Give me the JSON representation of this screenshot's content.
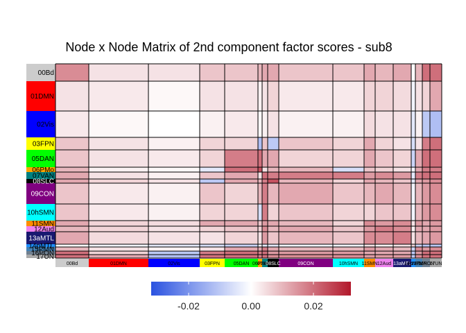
{
  "chart_data": {
    "type": "heatmap",
    "title": "Node x Node Matrix of 2nd component factor scores - sub8",
    "xlabel": "",
    "ylabel": "",
    "networks": [
      {
        "label": "00Bd",
        "bg": "#cccccc",
        "fg": "#000000"
      },
      {
        "label": "01DMN",
        "bg": "#ff0000",
        "fg": "#000000"
      },
      {
        "label": "02Vis",
        "bg": "#0000ff",
        "fg": "#000000"
      },
      {
        "label": "03FPN",
        "bg": "#ffff00",
        "fg": "#000000"
      },
      {
        "label": "05DAN",
        "bg": "#00ff00",
        "fg": "#000000"
      },
      {
        "label": "06PMo",
        "bg": "#ffa500",
        "fg": "#000000"
      },
      {
        "label": "07VAN",
        "bg": "#008080",
        "fg": "#000000"
      },
      {
        "label": "08SLC",
        "bg": "#000000",
        "fg": "#ffffff"
      },
      {
        "label": "09CON",
        "bg": "#800080",
        "fg": "#ffffff"
      },
      {
        "label": "10hSMN",
        "bg": "#00ffff",
        "fg": "#000000"
      },
      {
        "label": "11SMN",
        "bg": "#ff8c00",
        "fg": "#000000"
      },
      {
        "label": "12Aud",
        "bg": "#ee82ee",
        "fg": "#000000"
      },
      {
        "label": "13aMTL",
        "bg": "#191970",
        "fg": "#ffffff"
      },
      {
        "label": "14pMTL",
        "bg": "#1e90ff",
        "fg": "#000000"
      },
      {
        "label": "15PMN",
        "bg": "#4682b4",
        "fg": "#000000"
      },
      {
        "label": "16PON",
        "bg": "#708090",
        "fg": "#000000"
      },
      {
        "label": "17UN",
        "bg": "#a9a9a9",
        "fg": "#000000"
      }
    ],
    "row_labels_shown": [
      "00Bd",
      "01DMN",
      "02Vis",
      "03FPN",
      "05DAN",
      "06PMo",
      "07VAN",
      "08SLC",
      "09CON",
      "10hSMN",
      "11SMN",
      "12Aud",
      "13aMTL",
      "14pMTL",
      "15PMN",
      "16PON",
      "17UN"
    ],
    "col_labels_shown": [
      "00Bd",
      "01DMN",
      "02Vis",
      "03FPN",
      "05DAN",
      "06PMo",
      "07VAN",
      "08SLC",
      "09CON",
      "10hSMN",
      "11SMN",
      "12Aud",
      "13aMTL",
      "14pMTL",
      "15PMN",
      "16PON",
      "17UN"
    ],
    "values": [
      [
        0.016,
        0.004,
        0.004,
        0.008,
        0.008,
        0.01,
        0.012,
        0.012,
        0.008,
        0.008,
        0.012,
        0.01,
        0.012,
        0.0,
        0.01,
        0.02,
        0.02
      ],
      [
        0.004,
        0.003,
        0.001,
        0.004,
        0.004,
        0.002,
        0.004,
        0.006,
        0.003,
        0.003,
        0.006,
        0.006,
        0.005,
        -0.002,
        0.004,
        0.006,
        0.012
      ],
      [
        0.003,
        0.001,
        0.0,
        0.002,
        0.003,
        0.001,
        0.002,
        0.004,
        0.002,
        0.002,
        0.005,
        0.004,
        0.004,
        -0.004,
        0.002,
        -0.01,
        -0.012
      ],
      [
        0.008,
        0.004,
        0.002,
        0.006,
        0.006,
        -0.012,
        0.008,
        -0.01,
        0.008,
        0.006,
        0.012,
        0.006,
        0.004,
        -0.006,
        0.004,
        0.018,
        0.02
      ],
      [
        0.008,
        0.004,
        0.003,
        0.006,
        0.018,
        0.02,
        0.012,
        0.012,
        0.006,
        0.006,
        0.012,
        0.008,
        0.006,
        -0.008,
        0.012,
        0.02,
        0.02
      ],
      [
        0.01,
        0.002,
        0.001,
        -0.004,
        0.02,
        0.024,
        0.004,
        0.01,
        0.01,
        -0.006,
        0.008,
        0.006,
        0.004,
        -0.002,
        0.012,
        0.018,
        0.018
      ],
      [
        0.012,
        0.004,
        0.002,
        0.008,
        0.012,
        0.004,
        0.02,
        0.018,
        0.018,
        0.018,
        0.014,
        0.016,
        0.014,
        -0.004,
        0.018,
        0.02,
        0.02
      ],
      [
        0.012,
        0.006,
        0.004,
        -0.01,
        0.012,
        0.01,
        0.018,
        0.024,
        0.01,
        0.006,
        0.012,
        0.01,
        0.008,
        -0.004,
        0.012,
        0.014,
        0.016
      ],
      [
        0.008,
        0.003,
        0.002,
        0.008,
        0.006,
        0.01,
        0.018,
        0.01,
        0.012,
        0.008,
        0.01,
        0.012,
        0.01,
        -0.002,
        0.01,
        0.014,
        0.016
      ],
      [
        0.008,
        0.003,
        0.002,
        0.006,
        0.006,
        -0.006,
        0.018,
        0.006,
        0.008,
        0.006,
        0.006,
        0.008,
        0.008,
        -0.002,
        0.01,
        0.014,
        0.016
      ],
      [
        0.012,
        0.006,
        0.005,
        0.012,
        0.012,
        0.008,
        0.014,
        0.012,
        0.01,
        0.006,
        0.016,
        0.014,
        0.016,
        0.004,
        0.014,
        0.012,
        0.014
      ],
      [
        0.01,
        0.006,
        0.004,
        0.006,
        0.008,
        0.006,
        0.016,
        0.01,
        0.012,
        0.008,
        0.014,
        0.018,
        0.016,
        0.002,
        0.012,
        0.012,
        0.014
      ],
      [
        0.012,
        0.005,
        0.004,
        0.004,
        0.006,
        0.004,
        0.014,
        0.008,
        0.01,
        0.008,
        0.016,
        0.016,
        0.018,
        0.004,
        0.01,
        0.012,
        0.014
      ],
      [
        0.0,
        -0.002,
        -0.004,
        -0.006,
        -0.008,
        -0.002,
        -0.004,
        -0.004,
        -0.002,
        -0.002,
        0.004,
        0.002,
        0.004,
        0.006,
        -0.008,
        -0.01,
        -0.01
      ],
      [
        0.01,
        0.004,
        0.002,
        0.004,
        0.012,
        0.012,
        0.018,
        0.012,
        0.01,
        0.01,
        0.014,
        0.012,
        0.01,
        -0.008,
        0.016,
        0.014,
        0.016
      ],
      [
        0.02,
        0.006,
        -0.01,
        0.018,
        0.02,
        0.018,
        0.02,
        0.014,
        0.014,
        0.014,
        0.012,
        0.012,
        0.012,
        -0.01,
        0.014,
        0.02,
        0.02
      ],
      [
        0.02,
        0.012,
        -0.012,
        0.02,
        0.02,
        0.018,
        0.02,
        0.016,
        0.016,
        0.016,
        0.014,
        0.014,
        0.014,
        -0.01,
        0.016,
        0.02,
        0.02
      ]
    ],
    "colorbar": {
      "ticks": [
        "-0.02",
        "0.00",
        "0.02"
      ],
      "low_color": "#2a52e0",
      "mid_color": "#ffffff",
      "high_color": "#b2182b",
      "range": [
        -0.032,
        0.032
      ]
    },
    "grid": true,
    "legend": "bottom-center"
  },
  "colors": {
    "block_border": "#000000",
    "background": "#ffffff"
  }
}
